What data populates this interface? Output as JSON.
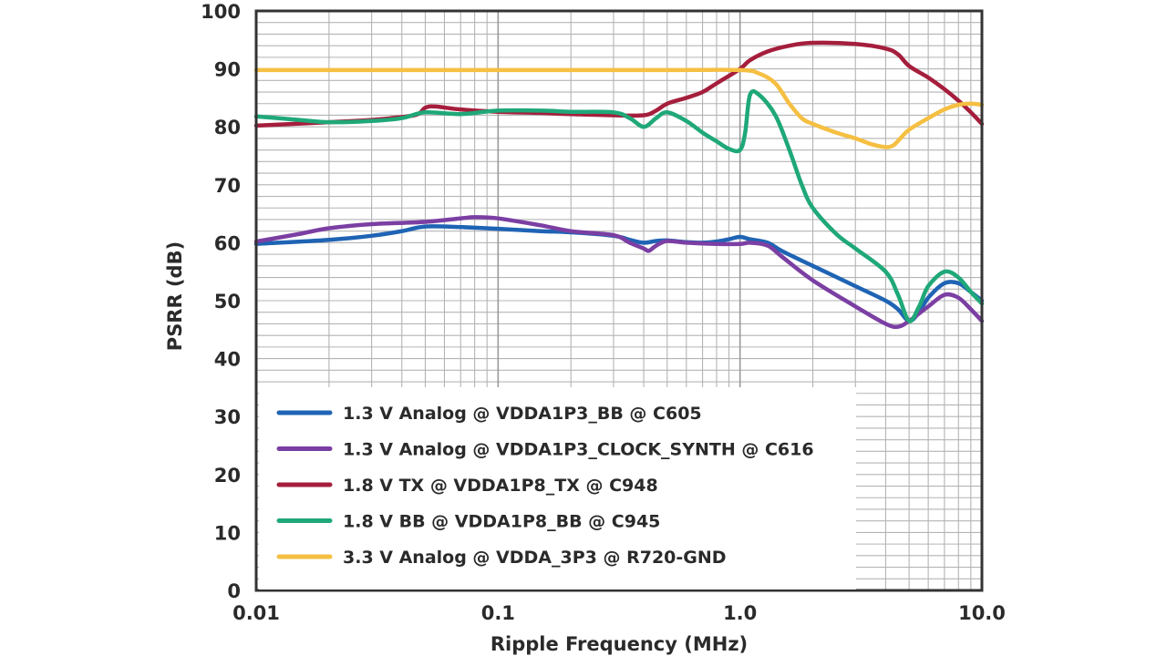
{
  "chart_data": {
    "type": "line",
    "xscale": "log",
    "xlim": [
      0.01,
      10.0
    ],
    "ylim": [
      0,
      100
    ],
    "xlabel": "Ripple Frequency (MHz)",
    "ylabel": "PSRR (dB)",
    "grid": true,
    "legend_position": "bottom-left",
    "x_ticks": [
      {
        "value": 0.01,
        "label": "0.01"
      },
      {
        "value": 0.1,
        "label": "0.1"
      },
      {
        "value": 1.0,
        "label": "1.0"
      },
      {
        "value": 10.0,
        "label": "10.0"
      }
    ],
    "y_ticks": [
      {
        "value": 0,
        "label": "0"
      },
      {
        "value": 10,
        "label": "10"
      },
      {
        "value": 20,
        "label": "20"
      },
      {
        "value": 30,
        "label": "30"
      },
      {
        "value": 40,
        "label": "40"
      },
      {
        "value": 50,
        "label": "50"
      },
      {
        "value": 60,
        "label": "60"
      },
      {
        "value": 70,
        "label": "70"
      },
      {
        "value": 80,
        "label": "80"
      },
      {
        "value": 90,
        "label": "90"
      },
      {
        "value": 100,
        "label": "100"
      }
    ],
    "series": [
      {
        "name": "1.3 V Analog @ VDDA1P3_BB @ C605",
        "color": "#1f64b4",
        "points": [
          [
            0.01,
            59.8
          ],
          [
            0.02,
            60.5
          ],
          [
            0.03,
            61.2
          ],
          [
            0.04,
            62.0
          ],
          [
            0.05,
            62.8
          ],
          [
            0.07,
            62.7
          ],
          [
            0.1,
            62.4
          ],
          [
            0.15,
            62.0
          ],
          [
            0.2,
            61.8
          ],
          [
            0.3,
            61.2
          ],
          [
            0.35,
            60.5
          ],
          [
            0.4,
            60.0
          ],
          [
            0.45,
            60.3
          ],
          [
            0.5,
            60.4
          ],
          [
            0.6,
            60.1
          ],
          [
            0.7,
            60.0
          ],
          [
            0.8,
            60.2
          ],
          [
            0.9,
            60.6
          ],
          [
            1.0,
            61.0
          ],
          [
            1.1,
            60.6
          ],
          [
            1.3,
            60.0
          ],
          [
            1.5,
            58.5
          ],
          [
            2.0,
            56.0
          ],
          [
            3.0,
            52.5
          ],
          [
            4.0,
            50.0
          ],
          [
            4.5,
            48.5
          ],
          [
            5.0,
            46.5
          ],
          [
            5.5,
            48.0
          ],
          [
            6.0,
            50.5
          ],
          [
            7.0,
            53.0
          ],
          [
            8.0,
            53.0
          ],
          [
            9.0,
            51.5
          ],
          [
            10.0,
            50.0
          ]
        ]
      },
      {
        "name": "1.3 V Analog @ VDDA1P3_CLOCK_SYNTH @ C616",
        "color": "#7b3fa3",
        "points": [
          [
            0.01,
            60.2
          ],
          [
            0.015,
            61.5
          ],
          [
            0.02,
            62.5
          ],
          [
            0.03,
            63.2
          ],
          [
            0.05,
            63.6
          ],
          [
            0.07,
            64.2
          ],
          [
            0.08,
            64.4
          ],
          [
            0.1,
            64.2
          ],
          [
            0.15,
            63.0
          ],
          [
            0.2,
            62.0
          ],
          [
            0.3,
            61.3
          ],
          [
            0.35,
            60.0
          ],
          [
            0.4,
            59.0
          ],
          [
            0.42,
            58.6
          ],
          [
            0.45,
            59.5
          ],
          [
            0.5,
            60.3
          ],
          [
            0.6,
            60.0
          ],
          [
            0.8,
            59.8
          ],
          [
            1.0,
            59.8
          ],
          [
            1.1,
            60.0
          ],
          [
            1.3,
            59.5
          ],
          [
            1.5,
            57.5
          ],
          [
            2.0,
            53.5
          ],
          [
            3.0,
            49.0
          ],
          [
            4.0,
            46.0
          ],
          [
            4.5,
            45.5
          ],
          [
            5.0,
            46.5
          ],
          [
            6.0,
            49.0
          ],
          [
            7.0,
            51.0
          ],
          [
            8.0,
            50.5
          ],
          [
            9.0,
            48.5
          ],
          [
            10.0,
            46.5
          ]
        ]
      },
      {
        "name": "1.8 V TX @ VDDA1P8_TX @ C948",
        "color": "#a51e3c",
        "points": [
          [
            0.01,
            80.2
          ],
          [
            0.02,
            80.8
          ],
          [
            0.03,
            81.2
          ],
          [
            0.045,
            82.0
          ],
          [
            0.05,
            83.3
          ],
          [
            0.055,
            83.5
          ],
          [
            0.07,
            83.0
          ],
          [
            0.1,
            82.6
          ],
          [
            0.15,
            82.4
          ],
          [
            0.2,
            82.2
          ],
          [
            0.3,
            82.0
          ],
          [
            0.4,
            82.0
          ],
          [
            0.45,
            82.8
          ],
          [
            0.5,
            84.0
          ],
          [
            0.6,
            85.0
          ],
          [
            0.7,
            86.0
          ],
          [
            0.8,
            87.5
          ],
          [
            1.0,
            90.0
          ],
          [
            1.1,
            91.5
          ],
          [
            1.3,
            93.0
          ],
          [
            1.6,
            94.0
          ],
          [
            2.0,
            94.5
          ],
          [
            3.0,
            94.3
          ],
          [
            4.0,
            93.5
          ],
          [
            4.5,
            92.5
          ],
          [
            5.0,
            90.5
          ],
          [
            6.0,
            88.5
          ],
          [
            7.0,
            86.5
          ],
          [
            8.0,
            84.5
          ],
          [
            9.0,
            82.5
          ],
          [
            10.0,
            80.5
          ]
        ]
      },
      {
        "name": "1.8 V BB @ VDDA1P8_BB @ C945",
        "color": "#1fa878",
        "points": [
          [
            0.01,
            81.8
          ],
          [
            0.015,
            81.2
          ],
          [
            0.02,
            80.8
          ],
          [
            0.03,
            81.0
          ],
          [
            0.04,
            81.5
          ],
          [
            0.05,
            82.5
          ],
          [
            0.07,
            82.2
          ],
          [
            0.1,
            82.8
          ],
          [
            0.15,
            82.8
          ],
          [
            0.2,
            82.6
          ],
          [
            0.3,
            82.5
          ],
          [
            0.35,
            81.5
          ],
          [
            0.4,
            80.0
          ],
          [
            0.45,
            81.5
          ],
          [
            0.5,
            82.5
          ],
          [
            0.6,
            81.0
          ],
          [
            0.7,
            79.0
          ],
          [
            0.8,
            77.5
          ],
          [
            0.9,
            76.2
          ],
          [
            1.0,
            76.0
          ],
          [
            1.05,
            79.0
          ],
          [
            1.1,
            85.5
          ],
          [
            1.2,
            85.5
          ],
          [
            1.4,
            82.0
          ],
          [
            1.6,
            76.0
          ],
          [
            1.8,
            70.0
          ],
          [
            2.0,
            66.0
          ],
          [
            2.5,
            61.5
          ],
          [
            3.0,
            59.0
          ],
          [
            4.0,
            55.0
          ],
          [
            4.5,
            51.0
          ],
          [
            5.0,
            46.5
          ],
          [
            5.5,
            49.0
          ],
          [
            6.0,
            52.5
          ],
          [
            7.0,
            55.0
          ],
          [
            8.0,
            54.0
          ],
          [
            9.0,
            51.5
          ],
          [
            10.0,
            49.5
          ]
        ]
      },
      {
        "name": "3.3 V Analog @ VDDA_3P3 @ R720-GND",
        "color": "#f5bf42",
        "points": [
          [
            0.01,
            89.8
          ],
          [
            0.1,
            89.8
          ],
          [
            0.5,
            89.8
          ],
          [
            1.0,
            89.8
          ],
          [
            1.2,
            89.2
          ],
          [
            1.4,
            87.5
          ],
          [
            1.6,
            84.0
          ],
          [
            1.8,
            81.5
          ],
          [
            2.0,
            80.5
          ],
          [
            2.5,
            79.0
          ],
          [
            3.0,
            78.0
          ],
          [
            3.5,
            77.0
          ],
          [
            4.0,
            76.5
          ],
          [
            4.3,
            76.8
          ],
          [
            4.6,
            78.0
          ],
          [
            5.0,
            79.5
          ],
          [
            6.0,
            81.5
          ],
          [
            7.0,
            83.0
          ],
          [
            8.0,
            83.8
          ],
          [
            9.0,
            84.0
          ],
          [
            10.0,
            83.8
          ]
        ]
      }
    ]
  }
}
